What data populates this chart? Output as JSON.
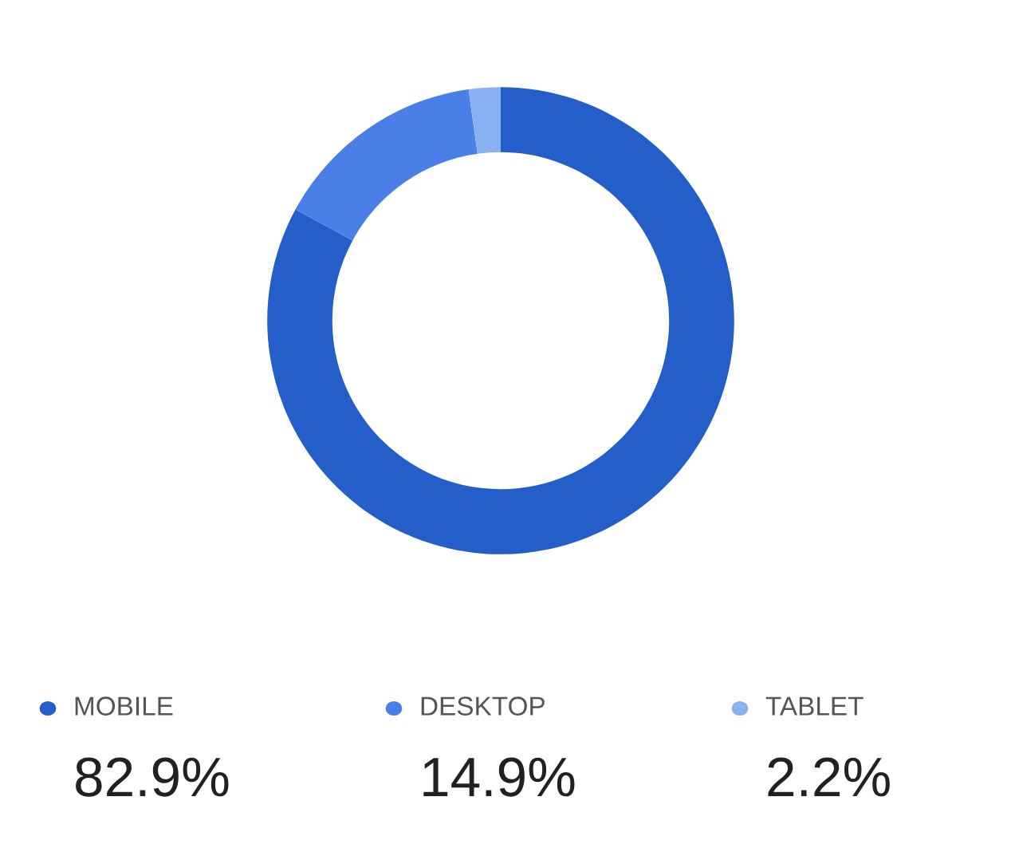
{
  "chart_data": {
    "type": "donut",
    "categories": [
      "MOBILE",
      "DESKTOP",
      "TABLET"
    ],
    "values": [
      82.9,
      14.9,
      2.2
    ],
    "colors": [
      "#245ec8",
      "#4a7fe8",
      "#8ab0f4"
    ],
    "value_labels": [
      "82.9%",
      "14.9%",
      "2.2%"
    ],
    "legend": "bottom"
  }
}
